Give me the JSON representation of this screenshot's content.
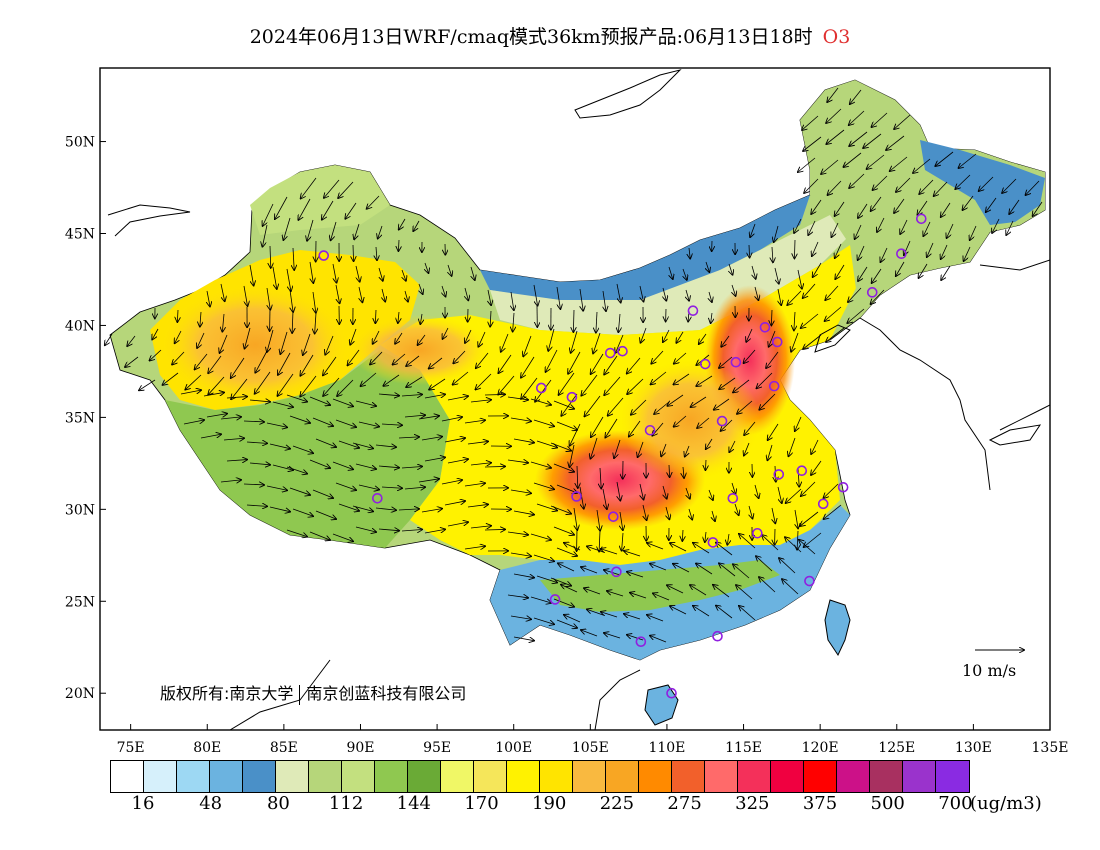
{
  "title": {
    "text": "2024年06月13日WRF/cmaq模式36km预报产品:06月13日18时",
    "pollutant": "O3"
  },
  "axes": {
    "lon_labels": [
      "75E",
      "80E",
      "85E",
      "90E",
      "95E",
      "100E",
      "105E",
      "110E",
      "115E",
      "120E",
      "125E",
      "130E",
      "135E"
    ],
    "lat_labels": [
      "50N",
      "45N",
      "40N",
      "35N",
      "30N",
      "25N",
      "20N"
    ],
    "lon_range": [
      73,
      135
    ],
    "lat_range": [
      18,
      54
    ]
  },
  "copyright": {
    "part1": "版权所有:南京大学",
    "part2": "南京创蓝科技有限公司"
  },
  "wind_reference": {
    "label": "10 m/s"
  },
  "colorbar": {
    "colors": [
      "#ffffff",
      "#d6f0fb",
      "#9dd8f3",
      "#6bb3e0",
      "#4a90c8",
      "#dfeab8",
      "#b6d67a",
      "#c3e07f",
      "#8fc850",
      "#6aaa36",
      "#f0f766",
      "#f5e65a",
      "#fff200",
      "#ffe400",
      "#f9b940",
      "#f8a623",
      "#ff8a00",
      "#f2602b",
      "#ff6a6a",
      "#f4305a",
      "#f00040",
      "#ff0000",
      "#cc1188",
      "#a83060",
      "#9a33cc",
      "#8a2be2"
    ],
    "labels": [
      "16",
      "48",
      "80",
      "112",
      "144",
      "170",
      "190",
      "225",
      "275",
      "325",
      "375",
      "500",
      "700"
    ],
    "unit": "(ug/m3)"
  },
  "stations": [
    "38.6,107.1",
    "43.8,87.6",
    "30.6,91.1",
    "36.6,101.8",
    "36.1,103.8",
    "38.5,106.3",
    "30.7,104.1",
    "29.6,106.5",
    "26.6,106.7",
    "25.1,102.7",
    "22.8,108.3",
    "20.0,110.3",
    "23.1,113.3",
    "26.1,119.3",
    "28.2,113.0",
    "28.7,115.9",
    "30.6,114.3",
    "31.9,117.3",
    "32.1,118.8",
    "30.3,120.2",
    "31.2,121.5",
    "34.3,108.9",
    "34.8,113.6",
    "36.7,117.0",
    "38.0,114.5",
    "37.9,112.5",
    "39.1,117.2",
    "39.9,116.4",
    "40.8,111.7",
    "41.8,123.4",
    "43.9,125.3",
    "45.8,126.6"
  ]
}
